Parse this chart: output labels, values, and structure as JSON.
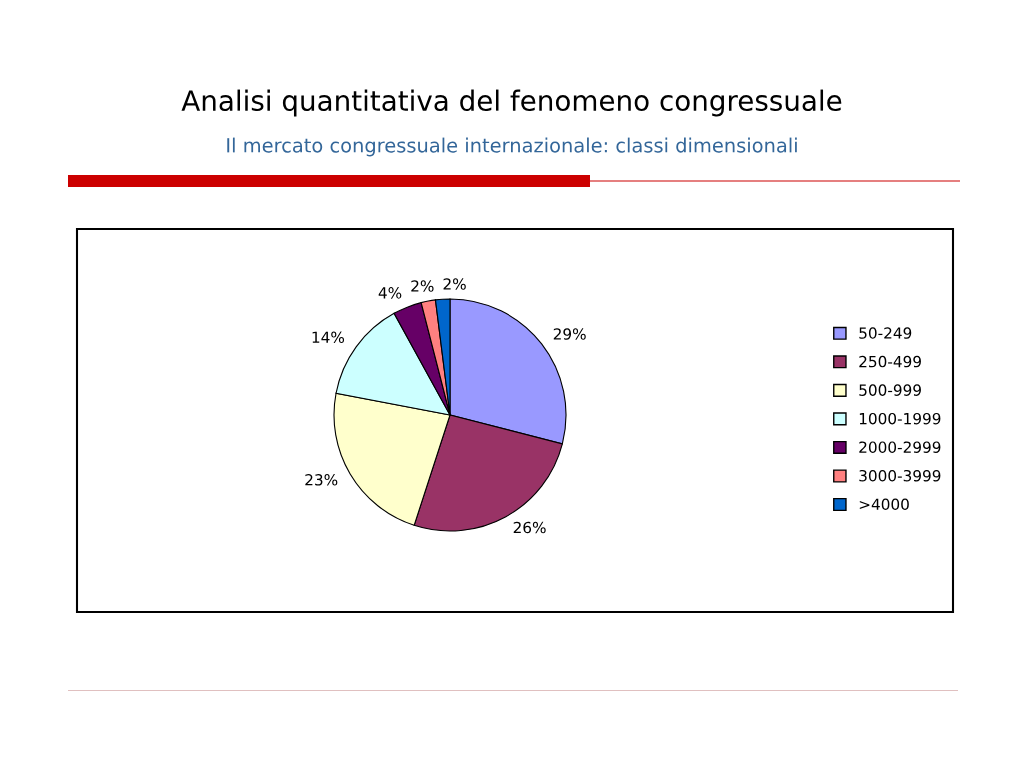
{
  "chart_data": {
    "type": "pie",
    "title": "Analisi quantitativa del fenomeno congressuale",
    "subtitle": "Il mercato congressuale internazionale: classi dimensionali",
    "categories": [
      "50-249",
      "250-499",
      "500-999",
      "1000-1999",
      "2000-2999",
      "3000-3999",
      ">4000"
    ],
    "values": [
      29,
      26,
      23,
      14,
      4,
      2,
      2
    ],
    "colors": [
      "#9999ff",
      "#993366",
      "#ffffcc",
      "#ccffff",
      "#660066",
      "#ff8080",
      "#0066cc"
    ],
    "value_labels": [
      "29%",
      "26%",
      "23%",
      "14%",
      "4%",
      "2%",
      "2%"
    ],
    "legend": "right"
  }
}
